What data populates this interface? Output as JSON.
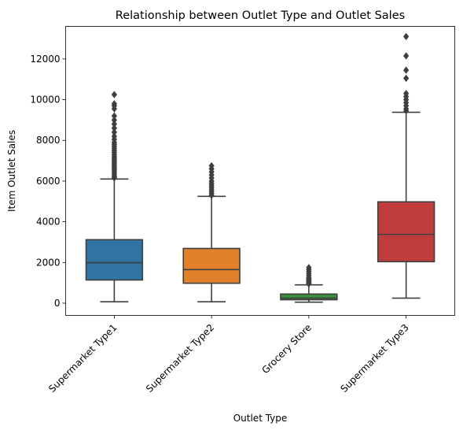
{
  "chart_data": {
    "type": "box",
    "title": "Relationship between Outlet Type and Outlet Sales",
    "xlabel": "Outlet Type",
    "ylabel": "Item Outlet Sales",
    "ylim": [
      -600,
      13600
    ],
    "yticks": [
      0,
      2000,
      4000,
      6000,
      8000,
      10000,
      12000
    ],
    "grid": false,
    "categories": [
      "Supermarket Type1",
      "Supermarket Type2",
      "Grocery Store",
      "Supermarket Type3"
    ],
    "boxes": [
      {
        "category": "Supermarket Type1",
        "color": "#3274a1",
        "whisker_low": 70,
        "q1": 1140,
        "median": 1990,
        "q3": 3120,
        "whisker_high": 6100,
        "outliers": [
          6150,
          6220,
          6300,
          6400,
          6480,
          6560,
          6640,
          6720,
          6800,
          6880,
          6960,
          7040,
          7120,
          7200,
          7300,
          7400,
          7500,
          7600,
          7700,
          7800,
          7900,
          8050,
          8200,
          8400,
          8600,
          8800,
          9000,
          9200,
          9550,
          9700,
          9800,
          10250
        ]
      },
      {
        "category": "Supermarket Type2",
        "color": "#e1812c",
        "whisker_low": 70,
        "q1": 980,
        "median": 1650,
        "q3": 2690,
        "whisker_high": 5250,
        "outliers": [
          5300,
          5400,
          5500,
          5600,
          5700,
          5800,
          5900,
          6000,
          6150,
          6300,
          6450,
          6600,
          6750
        ]
      },
      {
        "category": "Grocery Store",
        "color": "#3a923a",
        "whisker_low": 50,
        "q1": 170,
        "median": 250,
        "q3": 450,
        "whisker_high": 900,
        "outliers": [
          950,
          1000,
          1050,
          1100,
          1150,
          1200,
          1250,
          1350,
          1450,
          1550,
          1650,
          1750
        ]
      },
      {
        "category": "Supermarket Type3",
        "color": "#c03d3e",
        "whisker_low": 250,
        "q1": 2040,
        "median": 3380,
        "q3": 4980,
        "whisker_high": 9380,
        "outliers": [
          9450,
          9550,
          9700,
          9850,
          10000,
          10150,
          10300,
          11050,
          11450,
          12150,
          13100
        ]
      }
    ]
  }
}
